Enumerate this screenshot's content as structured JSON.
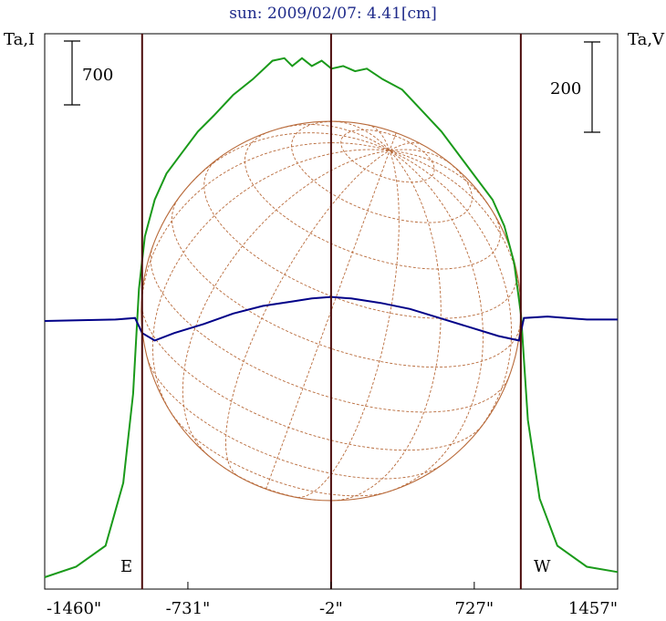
{
  "chart_data": {
    "type": "line",
    "title": "sun: 2009/02/07: 4.41[cm]",
    "left_axis_label": "Ta,I",
    "right_axis_label": "Ta,V",
    "left_scale_bar": "700",
    "right_scale_bar": "200",
    "east_label": "E",
    "west_label": "W",
    "x_tick_labels": [
      "-1460\"",
      "-731\"",
      "-2\"",
      "727\"",
      "1457\""
    ],
    "x_ticks": [
      -1460,
      -731,
      -2,
      727,
      1457
    ],
    "xlim": [
      -1460,
      1457
    ],
    "limb_markers": [
      -964,
      -2,
      964
    ],
    "grid": false,
    "colors": {
      "stokes_i": "#1a9a1a",
      "stokes_v": "#000088",
      "disk": "#b86a3a",
      "markers": "#4a0a0a",
      "title": "#1e2a8a"
    },
    "series": [
      {
        "key": "stokes_i",
        "points": [
          [
            -1460,
            0
          ],
          [
            -1300,
            0.02
          ],
          [
            -1150,
            0.06
          ],
          [
            -1060,
            0.18
          ],
          [
            -1010,
            0.35
          ],
          [
            -980,
            0.55
          ],
          [
            -950,
            0.65
          ],
          [
            -900,
            0.72
          ],
          [
            -840,
            0.77
          ],
          [
            -760,
            0.81
          ],
          [
            -680,
            0.85
          ],
          [
            -600,
            0.88
          ],
          [
            -500,
            0.92
          ],
          [
            -400,
            0.95
          ],
          [
            -300,
            0.985
          ],
          [
            -240,
            0.99
          ],
          [
            -200,
            0.975
          ],
          [
            -150,
            0.99
          ],
          [
            -100,
            0.975
          ],
          [
            -50,
            0.985
          ],
          [
            0,
            0.97
          ],
          [
            60,
            0.975
          ],
          [
            120,
            0.965
          ],
          [
            180,
            0.97
          ],
          [
            260,
            0.95
          ],
          [
            360,
            0.93
          ],
          [
            460,
            0.89
          ],
          [
            560,
            0.85
          ],
          [
            660,
            0.8
          ],
          [
            740,
            0.76
          ],
          [
            820,
            0.72
          ],
          [
            880,
            0.67
          ],
          [
            930,
            0.6
          ],
          [
            965,
            0.5
          ],
          [
            1000,
            0.3
          ],
          [
            1060,
            0.15
          ],
          [
            1150,
            0.06
          ],
          [
            1300,
            0.02
          ],
          [
            1457,
            0.01
          ]
        ]
      },
      {
        "key": "stokes_v",
        "points": [
          [
            -1460,
            0
          ],
          [
            -1100,
            0.01
          ],
          [
            -1000,
            0.02
          ],
          [
            -964,
            -0.08
          ],
          [
            -900,
            -0.13
          ],
          [
            -800,
            -0.08
          ],
          [
            -650,
            -0.02
          ],
          [
            -500,
            0.05
          ],
          [
            -350,
            0.1
          ],
          [
            -200,
            0.13
          ],
          [
            -100,
            0.15
          ],
          [
            -2,
            0.16
          ],
          [
            100,
            0.15
          ],
          [
            250,
            0.12
          ],
          [
            400,
            0.08
          ],
          [
            550,
            0.02
          ],
          [
            700,
            -0.04
          ],
          [
            850,
            -0.1
          ],
          [
            955,
            -0.13
          ],
          [
            980,
            0.02
          ],
          [
            1100,
            0.03
          ],
          [
            1300,
            0.01
          ],
          [
            1457,
            0.01
          ]
        ]
      }
    ]
  }
}
